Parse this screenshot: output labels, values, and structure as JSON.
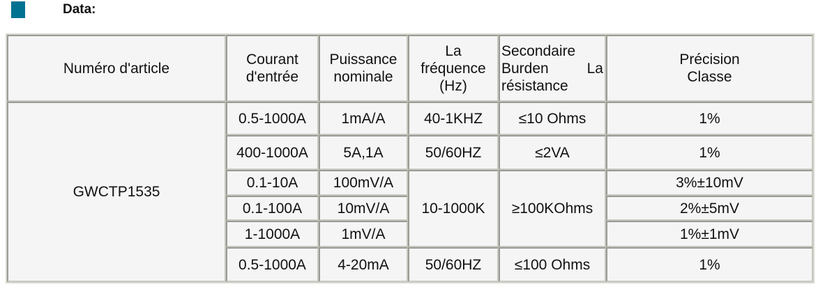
{
  "section": {
    "title": "Data:",
    "marker_color": "#007291"
  },
  "table": {
    "headers": [
      "Numéro d'article",
      "Courant d'entrée",
      "Puissance nominale",
      "La fréquence (Hz)",
      "Secondaire Burden La",
      "résistance",
      "Précision Classe"
    ],
    "article": "GWCTP1535",
    "rows": [
      {
        "current": "0.5-1000A",
        "power": "1mA/A",
        "freq": "40-1KHZ",
        "burden": "≤10 Ohms",
        "precision": "1%"
      },
      {
        "current": "400-1000A",
        "power": "5A,1A",
        "freq": "50/60HZ",
        "burden": "≤2VA",
        "precision": "1%"
      },
      {
        "current": "0.1-10A",
        "power": "100mV/A",
        "freq": "10-1000K",
        "burden": "≥100KOhms",
        "precision": "3%±10mV"
      },
      {
        "current": "0.1-100A",
        "power": "10mV/A",
        "precision": "2%±5mV"
      },
      {
        "current": "1-1000A",
        "power": "1mV/A",
        "precision": "1%±1mV"
      },
      {
        "current": "0.5-1000A",
        "power": "4-20mA",
        "freq": "50/60HZ",
        "burden": "≤100 Ohms",
        "precision": "1%"
      }
    ]
  }
}
